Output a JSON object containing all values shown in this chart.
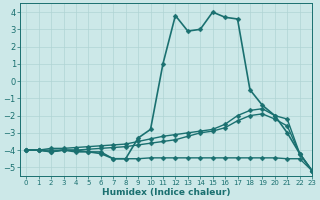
{
  "xlabel": "Humidex (Indice chaleur)",
  "background_color": "#cce8e8",
  "grid_color": "#b0d4d4",
  "line_color": "#1a7070",
  "xlim": [
    -0.5,
    23
  ],
  "ylim": [
    -5.5,
    4.5
  ],
  "yticks": [
    -5,
    -4,
    -3,
    -2,
    -1,
    0,
    1,
    2,
    3,
    4
  ],
  "xticks": [
    0,
    1,
    2,
    3,
    4,
    5,
    6,
    7,
    8,
    9,
    10,
    11,
    12,
    13,
    14,
    15,
    16,
    17,
    18,
    19,
    20,
    21,
    22,
    23
  ],
  "series": [
    {
      "x": [
        0,
        1,
        2,
        3,
        4,
        5,
        6,
        7,
        8,
        9,
        10,
        11,
        12,
        13,
        14,
        15,
        16,
        17,
        18,
        19,
        20,
        21,
        22,
        23
      ],
      "y": [
        -4.0,
        -4.0,
        -4.1,
        -4.0,
        -4.1,
        -4.1,
        -4.2,
        -4.5,
        -4.5,
        -3.3,
        -2.8,
        1.0,
        3.8,
        2.9,
        3.0,
        4.0,
        3.7,
        3.6,
        -0.5,
        -1.4,
        -2.0,
        -3.0,
        -4.2,
        -5.2
      ],
      "marker": "D",
      "markersize": 2.5,
      "linewidth": 1.2
    },
    {
      "x": [
        0,
        1,
        2,
        3,
        4,
        5,
        6,
        7,
        8,
        9,
        10,
        11,
        12,
        13,
        14,
        15,
        16,
        17,
        18,
        19,
        20,
        21,
        22,
        23
      ],
      "y": [
        -4.0,
        -4.0,
        -3.9,
        -3.9,
        -3.85,
        -3.8,
        -3.75,
        -3.7,
        -3.65,
        -3.5,
        -3.35,
        -3.2,
        -3.1,
        -3.0,
        -2.9,
        -2.8,
        -2.5,
        -2.0,
        -1.7,
        -1.6,
        -2.0,
        -2.2,
        -4.2,
        -5.2
      ],
      "marker": "D",
      "markersize": 2.5,
      "linewidth": 1.0
    },
    {
      "x": [
        0,
        1,
        2,
        3,
        4,
        5,
        6,
        7,
        8,
        9,
        10,
        11,
        12,
        13,
        14,
        15,
        16,
        17,
        18,
        19,
        20,
        21,
        22,
        23
      ],
      "y": [
        -4.0,
        -4.0,
        -4.0,
        -4.0,
        -4.0,
        -3.95,
        -3.9,
        -3.85,
        -3.8,
        -3.7,
        -3.6,
        -3.5,
        -3.4,
        -3.2,
        -3.0,
        -2.9,
        -2.7,
        -2.3,
        -2.0,
        -1.9,
        -2.2,
        -2.6,
        -4.2,
        -5.2
      ],
      "marker": "D",
      "markersize": 2.5,
      "linewidth": 1.0
    },
    {
      "x": [
        0,
        1,
        2,
        3,
        4,
        5,
        6,
        7,
        8,
        9,
        10,
        11,
        12,
        13,
        14,
        15,
        16,
        17,
        18,
        19,
        20,
        21,
        22,
        23
      ],
      "y": [
        -4.0,
        -4.0,
        -4.1,
        -4.0,
        -4.0,
        -4.1,
        -4.1,
        -4.5,
        -4.5,
        -4.5,
        -4.45,
        -4.45,
        -4.45,
        -4.45,
        -4.45,
        -4.45,
        -4.45,
        -4.45,
        -4.45,
        -4.45,
        -4.45,
        -4.5,
        -4.5,
        -5.2
      ],
      "marker": "D",
      "markersize": 2.5,
      "linewidth": 1.0
    }
  ]
}
